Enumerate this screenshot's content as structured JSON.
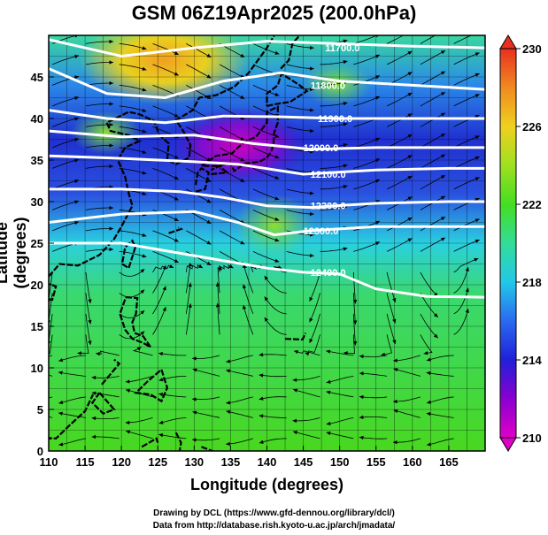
{
  "title": "GSM 06Z19Apr2025 (200.0hPa)",
  "x_label": "Longitude (degrees)",
  "y_label": "Latitude  (degrees)",
  "credit_line1": "Drawing by DCL (https://www.gfd-dennou.org/library/dcl/)",
  "credit_line2": "Data from http://database.rish.kyoto-u.ac.jp/arch/jmadata/",
  "chart_data": {
    "type": "heatmap",
    "x_range": [
      110,
      170
    ],
    "y_range": [
      0,
      50
    ],
    "x_ticks": [
      110,
      115,
      120,
      125,
      130,
      135,
      140,
      145,
      150,
      155,
      160,
      165
    ],
    "y_ticks": [
      0,
      5,
      10,
      15,
      20,
      25,
      30,
      35,
      40,
      45
    ],
    "colorbar": {
      "range": [
        210,
        230
      ],
      "ticks": [
        210,
        214,
        218,
        222,
        226,
        230
      ],
      "colors": [
        "#e000c8",
        "#8a00d0",
        "#2020d8",
        "#2a6af0",
        "#22c8e8",
        "#33dd99",
        "#44dd22",
        "#9ee020",
        "#f0d020",
        "#f08a20",
        "#e83020"
      ]
    },
    "contours": [
      {
        "label": "11700.0",
        "lon": 148,
        "lat": 48.5
      },
      {
        "label": "11800.0",
        "lon": 146,
        "lat": 44
      },
      {
        "label": "11900.0",
        "lon": 147,
        "lat": 40
      },
      {
        "label": "12000.0",
        "lon": 145,
        "lat": 36.5
      },
      {
        "label": "12100.0",
        "lon": 146,
        "lat": 33.3
      },
      {
        "label": "12200.0",
        "lon": 146,
        "lat": 29.5
      },
      {
        "label": "12300.0",
        "lon": 145,
        "lat": 26.5
      },
      {
        "label": "12400.0",
        "lon": 146,
        "lat": 21.5
      }
    ]
  }
}
